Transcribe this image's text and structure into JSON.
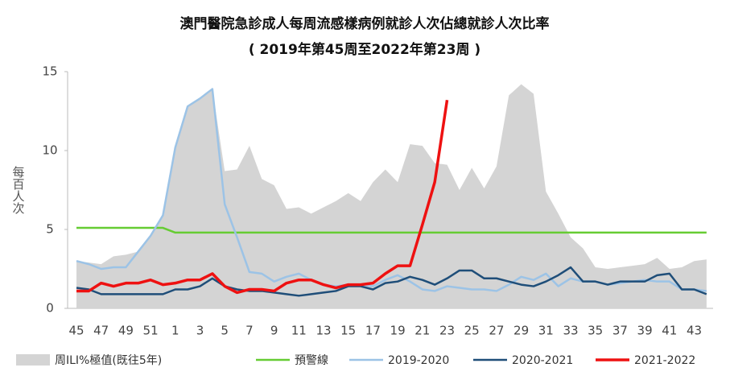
{
  "chart_data": {
    "type": "line",
    "title": "澳門醫院急診成人每周流感樣病例就診人次佔總就診人次比率",
    "subtitle": "( 2019年第45周至2022年第23周 )",
    "y_label": "每百人次",
    "categories": [
      "45",
      null,
      "47",
      null,
      "49",
      null,
      "51",
      null,
      "1",
      null,
      "3",
      null,
      "5",
      null,
      "7",
      null,
      "9",
      null,
      "11",
      null,
      "13",
      null,
      "15",
      null,
      "17",
      null,
      "19",
      null,
      "21",
      null,
      "23",
      null,
      "25",
      null,
      "27",
      null,
      "29",
      null,
      "31",
      null,
      "33",
      null,
      "35",
      null,
      "37",
      null,
      "39",
      null,
      "41",
      null,
      "43",
      null
    ],
    "ylim": [
      0,
      15
    ],
    "yticks": [
      0,
      5,
      10,
      15
    ],
    "series": [
      {
        "name": "周ILI%極值(既往5年)",
        "style": "area",
        "color": "#d4d4d4",
        "values": [
          3.0,
          2.9,
          2.8,
          3.3,
          3.4,
          3.6,
          4.6,
          5.9,
          10.2,
          12.8,
          13.3,
          13.9,
          8.7,
          8.8,
          10.3,
          8.2,
          7.8,
          6.3,
          6.4,
          6.0,
          6.4,
          6.8,
          7.3,
          6.8,
          8.0,
          8.8,
          8.0,
          10.4,
          10.3,
          9.2,
          9.1,
          7.5,
          8.9,
          7.6,
          9.0,
          13.5,
          14.2,
          13.6,
          7.4,
          6.0,
          4.5,
          3.8,
          2.6,
          2.5,
          2.6,
          2.7,
          2.8,
          3.2,
          2.5,
          2.6,
          3.0,
          3.1
        ]
      },
      {
        "name": "預警線",
        "style": "line",
        "color": "#66cc33",
        "width": 2.5,
        "values": [
          5.1,
          5.1,
          5.1,
          5.1,
          5.1,
          5.1,
          5.1,
          5.1,
          4.8,
          4.8,
          4.8,
          4.8,
          4.8,
          4.8,
          4.8,
          4.8,
          4.8,
          4.8,
          4.8,
          4.8,
          4.8,
          4.8,
          4.8,
          4.8,
          4.8,
          4.8,
          4.8,
          4.8,
          4.8,
          4.8,
          4.8,
          4.8,
          4.8,
          4.8,
          4.8,
          4.8,
          4.8,
          4.8,
          4.8,
          4.8,
          4.8,
          4.8,
          4.8,
          4.8,
          4.8,
          4.8,
          4.8,
          4.8,
          4.8,
          4.8,
          4.8,
          4.8
        ]
      },
      {
        "name": "2019-2020",
        "style": "line",
        "color": "#9cc3e6",
        "width": 2.5,
        "values": [
          3.0,
          2.8,
          2.5,
          2.6,
          2.6,
          3.6,
          4.6,
          5.9,
          10.2,
          12.8,
          13.3,
          13.9,
          6.6,
          4.5,
          2.3,
          2.2,
          1.7,
          2.0,
          2.2,
          1.8,
          1.5,
          1.4,
          1.5,
          1.5,
          1.4,
          1.8,
          2.1,
          1.7,
          1.2,
          1.1,
          1.4,
          1.3,
          1.2,
          1.2,
          1.1,
          1.5,
          2.0,
          1.8,
          2.2,
          1.4,
          1.9,
          1.7,
          1.7,
          1.5,
          1.6,
          1.7,
          1.8,
          1.7,
          1.7,
          1.2,
          1.2,
          1.1
        ]
      },
      {
        "name": "2020-2021",
        "style": "line",
        "color": "#1f4e79",
        "width": 2.5,
        "values": [
          1.3,
          1.2,
          0.9,
          0.9,
          0.9,
          0.9,
          0.9,
          0.9,
          1.2,
          1.2,
          1.4,
          1.9,
          1.4,
          1.2,
          1.1,
          1.1,
          1.0,
          0.9,
          0.8,
          0.9,
          1.0,
          1.1,
          1.4,
          1.4,
          1.2,
          1.6,
          1.7,
          2.0,
          1.8,
          1.5,
          1.9,
          2.4,
          2.4,
          1.9,
          1.9,
          1.7,
          1.5,
          1.4,
          1.7,
          2.1,
          2.6,
          1.7,
          1.7,
          1.5,
          1.7,
          1.7,
          1.7,
          2.1,
          2.2,
          1.2,
          1.2,
          0.9
        ]
      },
      {
        "name": "2021-2022",
        "style": "line",
        "color": "#ee1111",
        "width": 3.5,
        "values": [
          1.1,
          1.1,
          1.6,
          1.4,
          1.6,
          1.6,
          1.8,
          1.5,
          1.6,
          1.8,
          1.8,
          2.2,
          1.4,
          1.0,
          1.2,
          1.2,
          1.1,
          1.6,
          1.8,
          1.8,
          1.5,
          1.3,
          1.5,
          1.5,
          1.6,
          2.2,
          2.7,
          2.7,
          5.3,
          8.0,
          13.2,
          null,
          null,
          null,
          null,
          null,
          null,
          null,
          null,
          null,
          null,
          null,
          null,
          null,
          null,
          null,
          null,
          null,
          null,
          null,
          null,
          null
        ]
      }
    ]
  }
}
